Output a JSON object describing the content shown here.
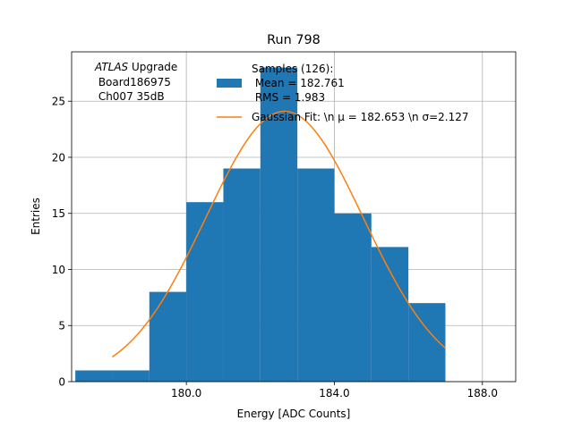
{
  "chart_data": {
    "type": "bar",
    "title": "Run 798",
    "xlabel": "Energy [ADC Counts]",
    "ylabel": "Entries",
    "xlim": [
      176.9,
      188.9
    ],
    "ylim": [
      0,
      29.4
    ],
    "x_ticks": [
      180.0,
      184.0,
      188.0
    ],
    "x_tick_labels": [
      "180.0",
      "184.0",
      "188.0"
    ],
    "y_ticks": [
      0,
      5,
      10,
      15,
      20,
      25
    ],
    "y_tick_labels": [
      "0",
      "5",
      "10",
      "15",
      "20",
      "25"
    ],
    "grid": true,
    "histogram": {
      "bin_edges": [
        177.0,
        178.0,
        179.0,
        180.0,
        181.0,
        182.0,
        183.0,
        184.0,
        185.0,
        186.0,
        187.0
      ],
      "counts": [
        1,
        1,
        8,
        16,
        19,
        28,
        19,
        15,
        12,
        7
      ],
      "color": "#1f77b4"
    },
    "gaussian_fit": {
      "mu": 182.653,
      "sigma": 2.127,
      "amplitude": 24.1,
      "x_range": [
        178.0,
        187.0
      ],
      "color": "#ff7f0e"
    },
    "legend": {
      "placement": "top-right",
      "entries": [
        {
          "lines": [
            "Samples (126):",
            " Mean = 182.761",
            " RMS = 1.983"
          ],
          "kind": "patch",
          "color": "#1f77b4"
        },
        {
          "lines": [
            "Gaussian Fit: \\n μ = 182.653 \\n σ=2.127"
          ],
          "kind": "line",
          "color": "#ff7f0e"
        }
      ]
    },
    "annotation": {
      "italic": "ATLAS",
      "rest": " Upgrade",
      "line2": " Board186975",
      "line3": " Ch007 35dB"
    }
  }
}
